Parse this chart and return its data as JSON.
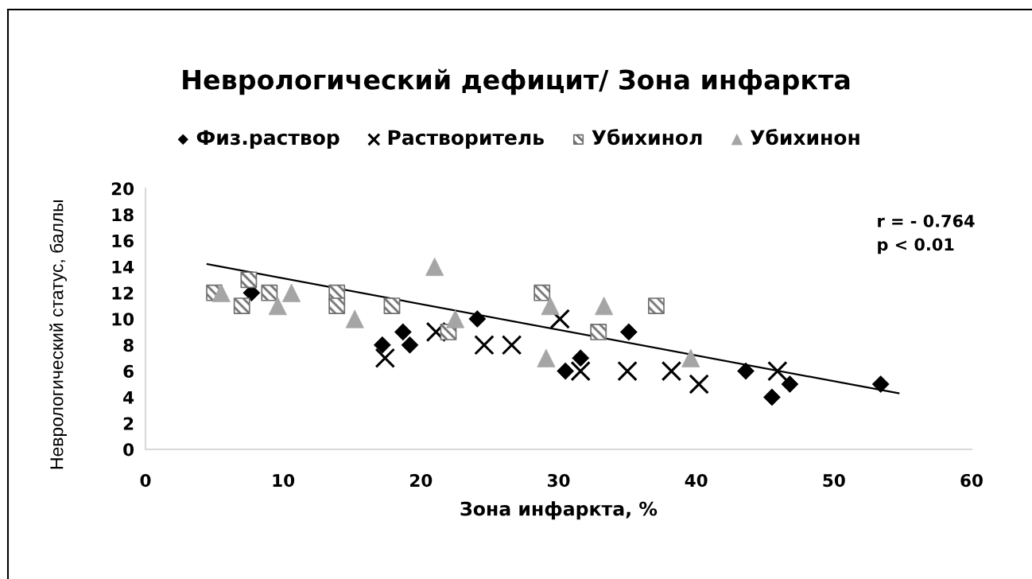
{
  "chart_data": {
    "type": "scatter",
    "title": "Неврологический дефицит/ Зона инфаркта",
    "xlabel": "Зона инфаркта, %",
    "ylabel": "Неврологический статус, баллы",
    "annotations": [
      "r = - 0.764",
      "p < 0.01"
    ],
    "xlim": [
      0,
      60
    ],
    "xticks": [
      0,
      10,
      20,
      30,
      40,
      50,
      60
    ],
    "ylim": [
      0,
      20
    ],
    "yticks": [
      0,
      2,
      4,
      6,
      8,
      10,
      12,
      14,
      16,
      18,
      20
    ],
    "grid": false,
    "legend": "top",
    "series": [
      {
        "name": "Физ.раствор",
        "color": "#000000",
        "marker": "diamond",
        "x": [
          7.7,
          17.2,
          18.7,
          19.2,
          24.1,
          30.5,
          31.6,
          35.1,
          43.6,
          45.5,
          46.8,
          53.4
        ],
        "values": [
          12,
          8,
          9,
          8,
          10,
          6,
          7,
          9,
          6,
          4,
          5,
          5
        ]
      },
      {
        "name": "Растворитель",
        "color": "#000000",
        "marker": "cross",
        "x": [
          17.4,
          21.1,
          24.6,
          26.6,
          30.1,
          31.6,
          35.0,
          38.2,
          40.2,
          45.9
        ],
        "values": [
          7,
          9,
          8,
          8,
          10,
          6,
          6,
          6,
          5,
          6
        ]
      },
      {
        "name": "Убихинол",
        "color": "#6f6f6f",
        "marker": "square",
        "x": [
          5.0,
          7.5,
          7.0,
          9.0,
          13.9,
          13.9,
          17.9,
          22.0,
          28.8,
          32.9,
          37.1
        ],
        "values": [
          12,
          13,
          11,
          12,
          12,
          11,
          11,
          9,
          12,
          9,
          11
        ]
      },
      {
        "name": "Убихинон",
        "color": "#a5a5a5",
        "marker": "triangle",
        "x": [
          5.5,
          9.6,
          10.6,
          15.2,
          21.0,
          22.5,
          29.4,
          29.1,
          33.3,
          39.6
        ],
        "values": [
          12,
          11,
          12,
          10,
          14,
          10,
          11,
          7,
          11,
          7
        ]
      },
      {
        "type": "line",
        "color": "#000000",
        "marker": "none",
        "x": [
          4.5,
          54.7
        ],
        "values": [
          14.2,
          4.3
        ]
      }
    ]
  }
}
